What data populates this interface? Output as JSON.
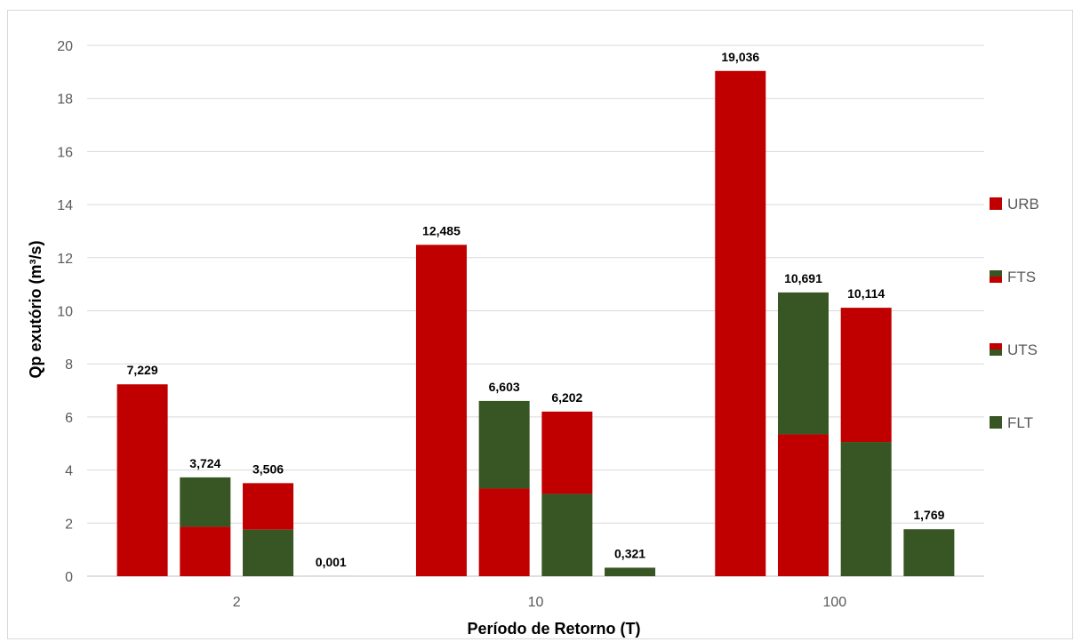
{
  "chart_data": {
    "type": "bar",
    "xlabel": "Período de Retorno (T)",
    "ylabel": "Qp exutório (m³/s)",
    "ylim": [
      0,
      20
    ],
    "yticks": [
      0,
      2,
      4,
      6,
      8,
      10,
      12,
      14,
      16,
      18,
      20
    ],
    "grid": true,
    "legend_position": "right",
    "categories": [
      "2",
      "10",
      "100"
    ],
    "series": [
      {
        "name": "URB",
        "values": [
          7.229,
          12.485,
          19.036
        ],
        "labels": [
          "7,229",
          "12,485",
          "19,036"
        ],
        "colors": [
          "#c00000"
        ]
      },
      {
        "name": "FTS",
        "values": [
          3.724,
          6.603,
          10.691
        ],
        "labels": [
          "3,724",
          "6,603",
          "10,691"
        ],
        "colors": [
          "#c00000",
          "#375623"
        ]
      },
      {
        "name": "UTS",
        "values": [
          3.506,
          6.202,
          10.114
        ],
        "labels": [
          "3,506",
          "6,202",
          "10,114"
        ],
        "colors": [
          "#375623",
          "#c00000"
        ]
      },
      {
        "name": "FLT",
        "values": [
          0.001,
          0.321,
          1.769
        ],
        "labels": [
          "0,001",
          "0,321",
          "1,769"
        ],
        "colors": [
          "#375623"
        ]
      }
    ]
  }
}
